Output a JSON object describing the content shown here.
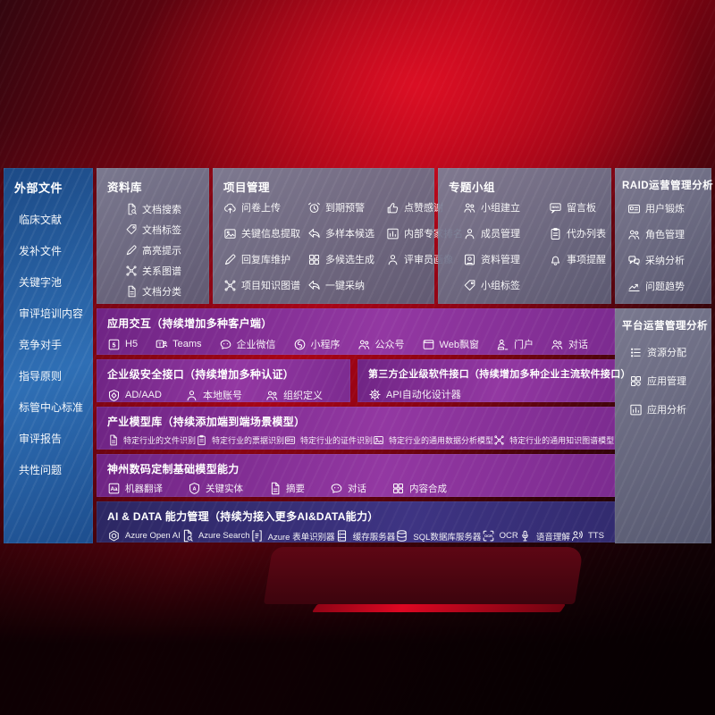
{
  "colors": {
    "background_red": "#a90517",
    "sidebar_blue": "#2a62a5",
    "panel_slate": "#6b7089",
    "purple": "#8c3598",
    "indigo": "#383079",
    "text": "#ffffff"
  },
  "sidebar": {
    "title": "外部文件",
    "items": [
      "临床文献",
      "发补文件",
      "关键字池",
      "审评培训内容",
      "竞争对手",
      "指导原则",
      "标管中心标准",
      "审评报告",
      "共性问题"
    ]
  },
  "library": {
    "title": "资料库",
    "items": [
      {
        "icon": "doc-search",
        "label": "文档搜索"
      },
      {
        "icon": "tag",
        "label": "文档标签"
      },
      {
        "icon": "pen",
        "label": "高亮提示"
      },
      {
        "icon": "graph",
        "label": "关系图谱"
      },
      {
        "icon": "doc",
        "label": "文档分类"
      }
    ]
  },
  "project": {
    "title": "项目管理",
    "columns": [
      {
        "items": [
          {
            "icon": "cloud-up",
            "label": "问卷上传"
          },
          {
            "icon": "image",
            "label": "关键信息提取"
          },
          {
            "icon": "pen",
            "label": "回复库维护"
          },
          {
            "icon": "graph",
            "label": "项目知识图谱"
          }
        ]
      },
      {
        "items": [
          {
            "icon": "alarm",
            "label": "到期预警"
          },
          {
            "icon": "reply",
            "label": "多样本候选"
          },
          {
            "icon": "grid",
            "label": "多候选生成"
          },
          {
            "icon": "reply",
            "label": "一键采纳"
          }
        ]
      },
      {
        "items": [
          {
            "icon": "thumb",
            "label": "点赞感谢"
          },
          {
            "icon": "rank",
            "label": "内部专家排名"
          },
          {
            "icon": "person",
            "label": "评审员画像"
          }
        ]
      }
    ]
  },
  "group": {
    "title": "专题小组",
    "columns": [
      {
        "items": [
          {
            "icon": "people",
            "label": "小组建立"
          },
          {
            "icon": "person",
            "label": "成员管理"
          },
          {
            "icon": "album",
            "label": "资料管理"
          },
          {
            "icon": "tag",
            "label": "小组标签"
          }
        ]
      },
      {
        "items": [
          {
            "icon": "bbs",
            "label": "留言板"
          },
          {
            "icon": "clipboard",
            "label": "代办列表"
          },
          {
            "icon": "bell",
            "label": "事项提醒"
          }
        ]
      }
    ]
  },
  "raid": {
    "title": "RAID运营管理分析",
    "items": [
      {
        "icon": "idcard",
        "label": "用户锻炼"
      },
      {
        "icon": "people",
        "label": "角色管理"
      },
      {
        "icon": "qa",
        "label": "采纳分析"
      },
      {
        "icon": "trend",
        "label": "问题趋势"
      }
    ]
  },
  "platform": {
    "title": "平台运营管理分析",
    "items": [
      {
        "icon": "list",
        "label": "资源分配"
      },
      {
        "icon": "apps",
        "label": "应用管理"
      },
      {
        "icon": "rank",
        "label": "应用分析"
      }
    ]
  },
  "interaction": {
    "title": "应用交互（持续增加多种客户端）",
    "items": [
      {
        "icon": "h5",
        "label": "H5"
      },
      {
        "icon": "teams",
        "label": "Teams"
      },
      {
        "icon": "wechat",
        "label": "企业微信"
      },
      {
        "icon": "miniapp",
        "label": "小程序"
      },
      {
        "icon": "people",
        "label": "公众号"
      },
      {
        "icon": "window",
        "label": "Web飘窗"
      },
      {
        "icon": "portal",
        "label": "门户"
      },
      {
        "icon": "people",
        "label": "对话"
      }
    ]
  },
  "security": {
    "title": "企业级安全接口（持续增加多种认证）",
    "items": [
      {
        "icon": "shield",
        "label": "AD/AAD"
      },
      {
        "icon": "person",
        "label": "本地账号"
      },
      {
        "icon": "people",
        "label": "组织定义"
      }
    ]
  },
  "thirdparty": {
    "title": "第三方企业级软件接口（持续增加多种企业主流软件接口）",
    "items": [
      {
        "icon": "gear",
        "label": "API自动化设计器"
      }
    ]
  },
  "industry": {
    "title": "产业模型库（持续添加端到端场景模型）",
    "items": [
      {
        "icon": "doc",
        "label": "特定行业的文件识别"
      },
      {
        "icon": "clipboard",
        "label": "特定行业的票据识别"
      },
      {
        "icon": "idcard",
        "label": "特定行业的证件识别"
      },
      {
        "icon": "image",
        "label": "特定行业的通用数据分析模型"
      },
      {
        "icon": "graph",
        "label": "特定行业的通用知识图谱模型"
      }
    ]
  },
  "basemodel": {
    "title": "神州数码定制基础模型能力",
    "items": [
      {
        "icon": "translate",
        "label": "机器翻译"
      },
      {
        "icon": "entity",
        "label": "关键实体"
      },
      {
        "icon": "doc",
        "label": "摘要"
      },
      {
        "icon": "wechat",
        "label": "对话"
      },
      {
        "icon": "grid",
        "label": "内容合成"
      }
    ]
  },
  "aidata": {
    "title": "AI & DATA 能力管理（持续为接入更多AI&DATA能力）",
    "items": [
      {
        "icon": "openai",
        "label": "Azure Open AI"
      },
      {
        "icon": "doc-search",
        "label": "Azure Search"
      },
      {
        "icon": "form",
        "label": "Azure 表单识别器"
      },
      {
        "icon": "server",
        "label": "缓存服务器"
      },
      {
        "icon": "db",
        "label": "SQL数据库服务器"
      },
      {
        "icon": "ocr",
        "label": "OCR"
      },
      {
        "icon": "mic",
        "label": "语音理解"
      },
      {
        "icon": "tts",
        "label": "TTS"
      }
    ]
  }
}
